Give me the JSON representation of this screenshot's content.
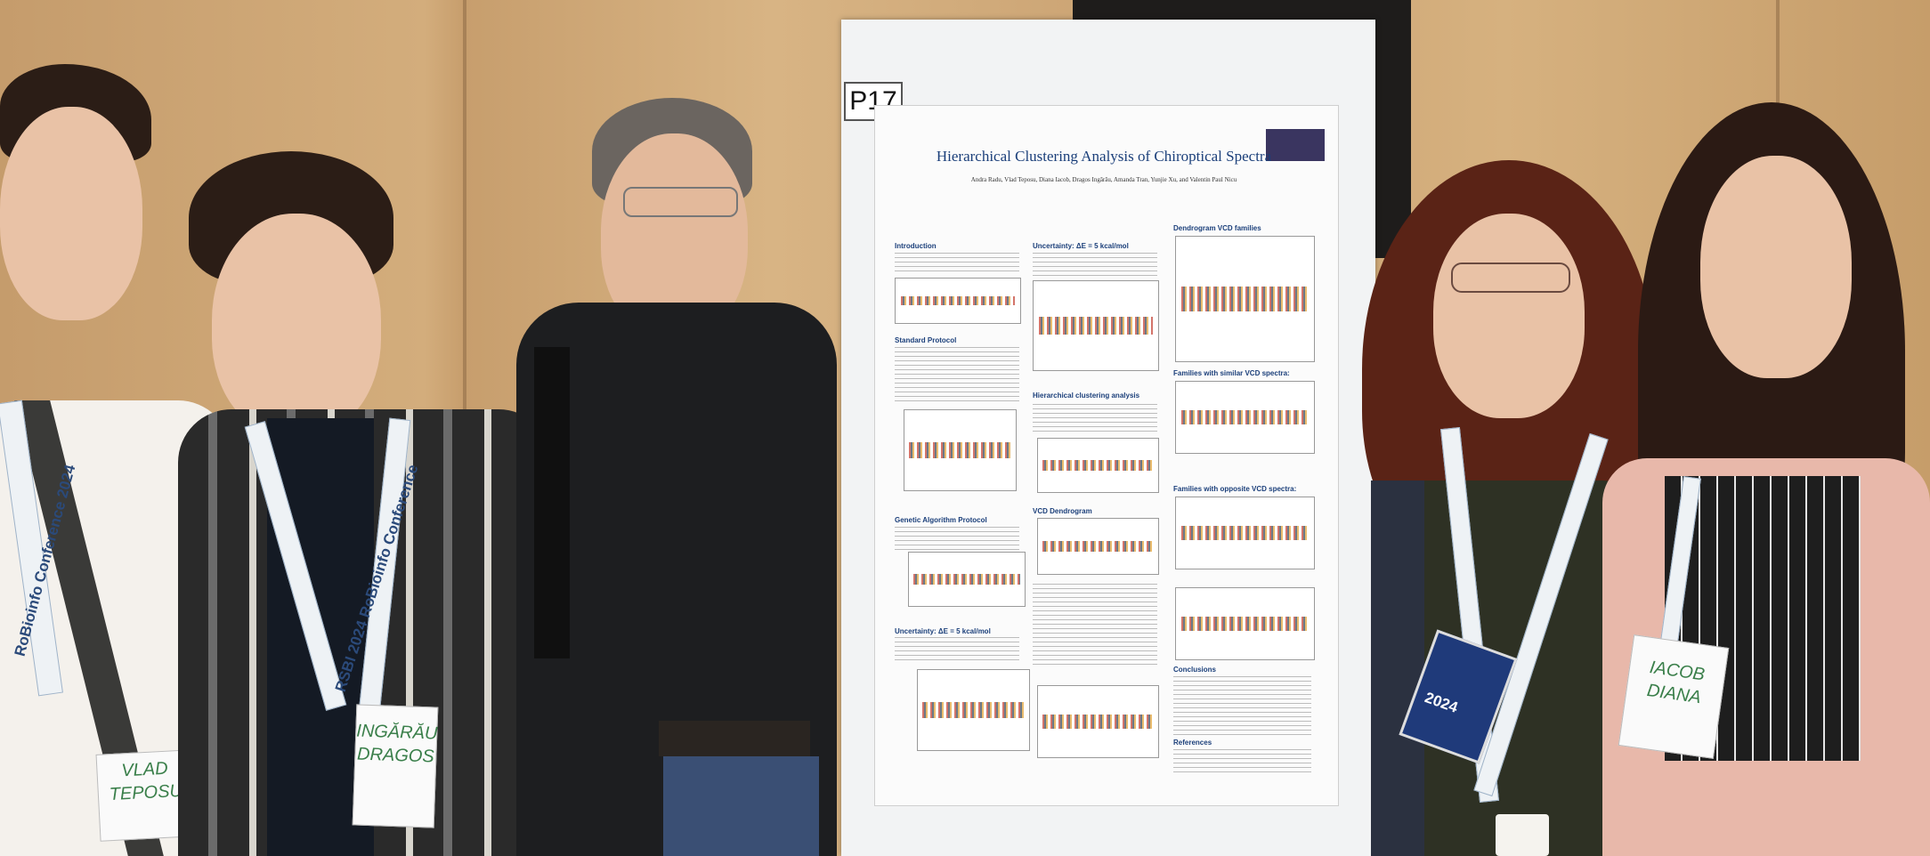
{
  "poster": {
    "board_label": "P17",
    "title": "Hierarchical Clustering Analysis of Chiroptical Spectra",
    "authors": "Andra Radu, Vlad Teposu, Diana Iacob, Dragos Ingărău, Amanda Tran, Yunjie Xu, and Valentin Paul Nicu",
    "sections": {
      "introduction": "Introduction",
      "standard_protocol": "Standard Protocol",
      "genetic_algorithm": "Genetic Algorithm Protocol",
      "uncertainty_left": "Uncertainty: ΔE = 5 kcal/mol",
      "uncertainty_mid": "Uncertainty: ΔE = 5 kcal/mol",
      "hierarchical_clustering": "Hierarchical clustering analysis",
      "vcd_dendrogram": "VCD Dendrogram",
      "dendrogram_families": "Dendrogram VCD families",
      "similar_families": "Families with similar VCD spectra:",
      "opposite_families": "Families with opposite VCD spectra:",
      "conclusions": "Conclusions",
      "references": "References"
    }
  },
  "badges": {
    "vlad": "VLAD\nTEPOSU",
    "dragos": "INGĂRĂU\nDRAGOS",
    "diana": "IACOB\nDIANA"
  },
  "lanyard_texts": {
    "left": "RoBioinfo Conference 2024",
    "second": "RSBI 2024 RoBioinfo Conference",
    "fourth": "2024"
  },
  "colors": {
    "wall": "#d3ad7c",
    "board": "#f2f3f4",
    "poster_title": "#1b3f7a"
  }
}
